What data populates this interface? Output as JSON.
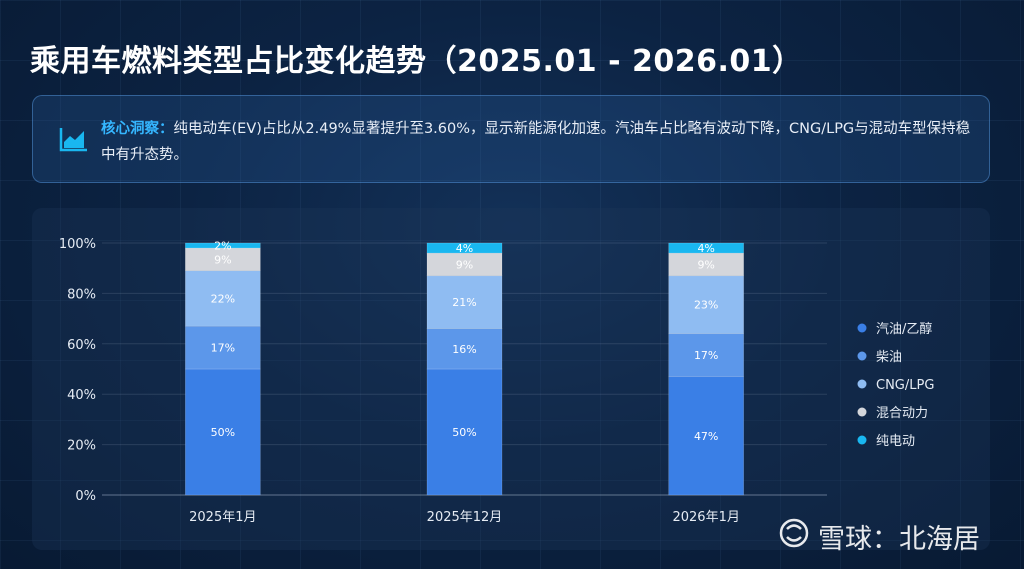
{
  "page": {
    "title": "乘用车燃料类型占比变化趋势（2025.01 - 2026.01）"
  },
  "insight": {
    "label": "核心洞察：",
    "text": "纯电动车(EV)占比从2.49%显著提升至3.60%，显示新能源化加速。汽油车占比略有波动下降，CNG/LPG与混动车型保持稳中有升态势。",
    "icon": "area-chart-icon"
  },
  "watermark": {
    "text": "雪球：北海居",
    "icon": "snowball-logo-icon"
  },
  "chart_data": {
    "type": "bar",
    "stacked": true,
    "categories": [
      "2025年1月",
      "2025年12月",
      "2026年1月"
    ],
    "series": [
      {
        "name": "汽油/乙醇",
        "color": "#3a7fe6",
        "values": [
          50,
          50,
          47
        ],
        "labels": [
          "50%",
          "50%",
          "47%"
        ]
      },
      {
        "name": "柴油",
        "color": "#5c97ea",
        "values": [
          17,
          16,
          17
        ],
        "labels": [
          "17%",
          "16%",
          "17%"
        ]
      },
      {
        "name": "CNG/LPG",
        "color": "#8fbcf2",
        "values": [
          22,
          21,
          23
        ],
        "labels": [
          "22%",
          "21%",
          "23%"
        ]
      },
      {
        "name": "混合动力",
        "color": "#d4d6db",
        "values": [
          9,
          9,
          9
        ],
        "labels": [
          "9%",
          "9%",
          "9%"
        ]
      },
      {
        "name": "纯电动",
        "color": "#19b7f0",
        "values": [
          2,
          4,
          4
        ],
        "labels": [
          "2%",
          "4%",
          "4%"
        ]
      }
    ],
    "ylim": [
      0,
      100
    ],
    "yticks": [
      "0%",
      "20%",
      "40%",
      "60%",
      "80%",
      "100%"
    ],
    "grid": true,
    "legend_position": "right"
  }
}
